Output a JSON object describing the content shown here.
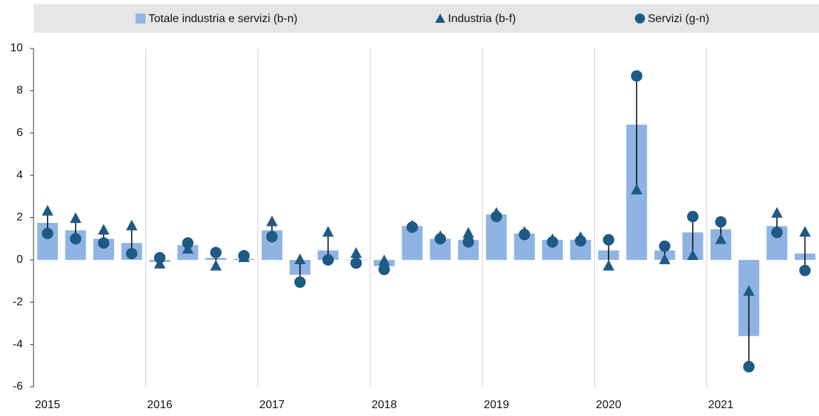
{
  "chart_data": {
    "type": "bar",
    "categories": [
      "2015",
      null,
      null,
      null,
      "2016",
      null,
      null,
      null,
      "2017",
      null,
      null,
      null,
      "2018",
      null,
      null,
      null,
      "2019",
      null,
      null,
      null,
      "2020",
      null,
      null,
      null,
      "2021",
      null,
      null,
      null
    ],
    "series": [
      {
        "name": "Totale industria e servizi (b-n)",
        "type": "bar",
        "color": "#8fb4e3",
        "values": [
          1.75,
          1.4,
          1.0,
          0.8,
          -0.1,
          0.7,
          0.1,
          0.05,
          1.4,
          -0.7,
          0.45,
          0.0,
          -0.3,
          1.6,
          1.0,
          0.95,
          2.15,
          1.25,
          0.95,
          0.95,
          0.45,
          6.4,
          0.45,
          1.3,
          1.45,
          -3.6,
          1.6,
          0.3
        ]
      },
      {
        "name": "Industria (b-f)",
        "type": "scatter",
        "marker": "triangle",
        "color": "#1d5a84",
        "values": [
          2.3,
          1.95,
          1.4,
          1.6,
          -0.2,
          0.5,
          -0.3,
          0.1,
          1.8,
          0.0,
          1.3,
          0.3,
          -0.05,
          1.6,
          1.1,
          1.25,
          2.2,
          1.3,
          0.95,
          1.05,
          -0.3,
          3.3,
          0.0,
          0.2,
          0.95,
          -1.5,
          2.2,
          1.3
        ]
      },
      {
        "name": "Servizi (g-n)",
        "type": "scatter",
        "marker": "circle",
        "color": "#1d5a84",
        "values": [
          1.25,
          1.0,
          0.8,
          0.3,
          0.1,
          0.8,
          0.35,
          0.2,
          1.1,
          -1.05,
          0.0,
          -0.15,
          -0.45,
          1.55,
          1.0,
          0.85,
          2.05,
          1.2,
          0.85,
          0.9,
          0.95,
          8.7,
          0.65,
          2.05,
          1.8,
          -5.05,
          1.3,
          -0.5
        ]
      }
    ],
    "ylim": [
      -6,
      10
    ],
    "yticks": [
      -6,
      -4,
      -2,
      0,
      2,
      4,
      6,
      8,
      10
    ],
    "grid": true
  }
}
